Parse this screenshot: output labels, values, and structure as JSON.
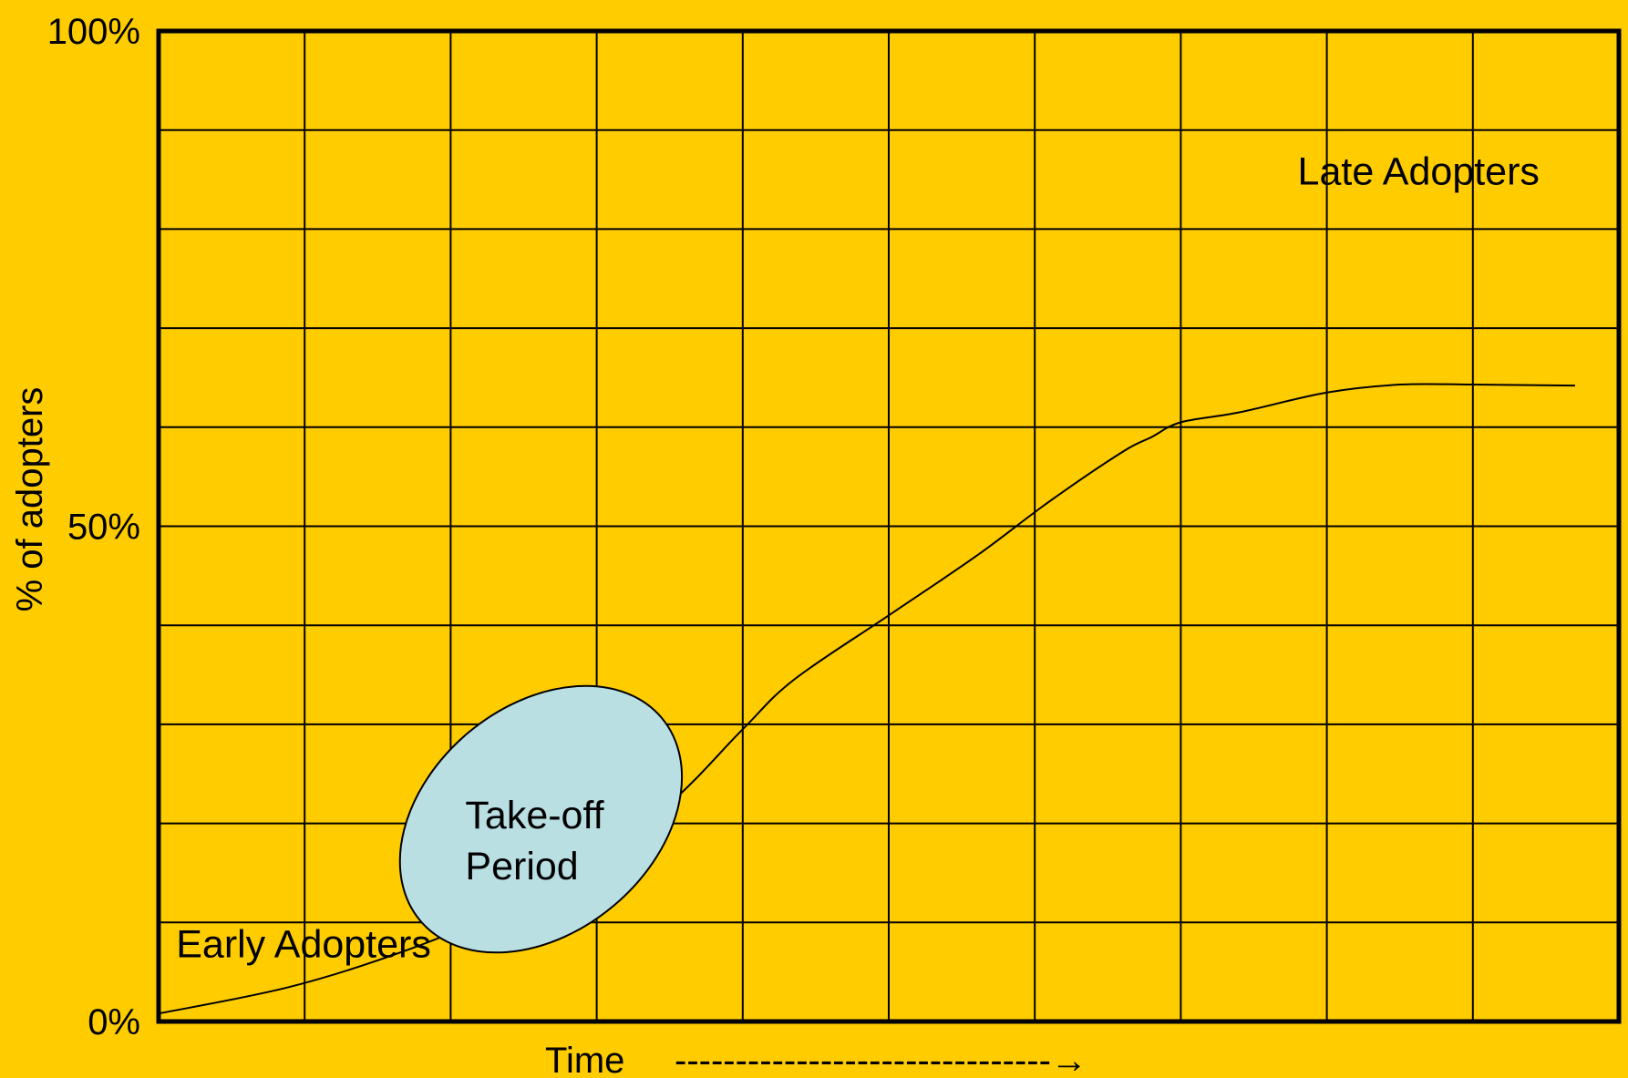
{
  "chart_data": {
    "type": "line",
    "xlabel": "Time",
    "x_arrow": "-------------------------------→",
    "ylabel": "% of adopters",
    "ylim": [
      0,
      100
    ],
    "yticks": [
      "0%",
      "50%",
      "100%"
    ],
    "grid": true,
    "grid_columns": 10,
    "grid_rows": 10,
    "series": [
      {
        "x": [
          0,
          0.9,
          1.7,
          2.4,
          2.9,
          3.5,
          4.0,
          4.35,
          5.0,
          5.6,
          6.1,
          6.6,
          6.8,
          7.0,
          7.4,
          8.0,
          8.5,
          9.0,
          9.7
        ],
        "values": [
          0.8,
          3.5,
          7.2,
          11.5,
          15.5,
          22,
          29.5,
          34.5,
          41,
          47,
          52.5,
          57.5,
          59,
          60.5,
          61.5,
          63.5,
          64.3,
          64.3,
          64.2
        ]
      }
    ],
    "annotations": [
      {
        "text": "Early Adopters",
        "x": 0.12,
        "y": 6.5
      },
      {
        "text": "Late Adopters",
        "x": 7.8,
        "y": 84.5
      },
      {
        "lines": [
          "Take-off",
          "Period"
        ],
        "x": 2.1,
        "y": 19.5,
        "highlight": "ellipse"
      }
    ],
    "colors": {
      "background": "#FFCC00",
      "line": "#000000",
      "ellipse_fill": "#B9DFE3",
      "ellipse_stroke": "#000000"
    }
  }
}
